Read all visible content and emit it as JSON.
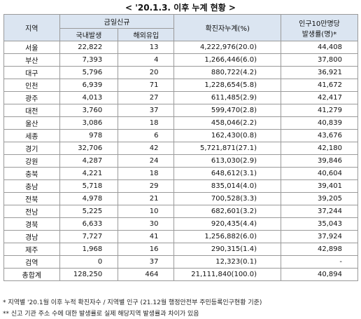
{
  "title": "< '20.1.3. 이후 누계 현황 >",
  "table": {
    "header": {
      "region": "지역",
      "new_group": "금일신규",
      "domestic": "국내발생",
      "overseas": "해외유입",
      "cumulative": "확진자누계(%)",
      "rate": [
        "인구10만명당",
        "발생률(명)*"
      ]
    },
    "rows": [
      [
        "서울",
        "22,822",
        "13",
        "4,222,976(20.0)",
        "44,408"
      ],
      [
        "부산",
        "7,393",
        "4",
        "1,266,446(6.0)",
        "37,800"
      ],
      [
        "대구",
        "5,796",
        "20",
        "880,722(4.2)",
        "36,921"
      ],
      [
        "인천",
        "6,939",
        "71",
        "1,228,654(5.8)",
        "41,672"
      ],
      [
        "광주",
        "4,013",
        "27",
        "611,485(2.9)",
        "42,417"
      ],
      [
        "대전",
        "3,760",
        "37",
        "599,470(2.8)",
        "41,279"
      ],
      [
        "울산",
        "3,086",
        "18",
        "458,046(2.2)",
        "40,839"
      ],
      [
        "세종",
        "978",
        "6",
        "162,430(0.8)",
        "43,676"
      ],
      [
        "경기",
        "32,706",
        "42",
        "5,721,871(27.1)",
        "42,180"
      ],
      [
        "강원",
        "4,287",
        "24",
        "613,030(2.9)",
        "39,846"
      ],
      [
        "충북",
        "4,221",
        "18",
        "648,612(3.1)",
        "40,604"
      ],
      [
        "충남",
        "5,718",
        "29",
        "835,014(4.0)",
        "39,401"
      ],
      [
        "전북",
        "4,978",
        "21",
        "700,528(3.3)",
        "39,205"
      ],
      [
        "전남",
        "5,225",
        "10",
        "682,601(3.2)",
        "37,244"
      ],
      [
        "경북",
        "6,633",
        "30",
        "920,435(4.4)",
        "35,043"
      ],
      [
        "경남",
        "7,727",
        "41",
        "1,256,882(6.0)",
        "37,924"
      ],
      [
        "제주",
        "1,968",
        "16",
        "290,315(1.4)",
        "42,898"
      ],
      [
        "검역",
        "0",
        "37",
        "12,323(0.1)",
        "-"
      ],
      [
        "총합계",
        "128,250",
        "464",
        "21,111,840(100.0)",
        "40,894"
      ]
    ]
  },
  "footnotes": [
    "* 지역별 '20.1월 이후 누적 확진자수 / 지역별 인구 (21.12월 행정안전부 주민등록인구현황 기준)",
    "** 신고 기관 주소 수에 대한 발생률로 실제 해당지역 발생률과 차이가 있음"
  ]
}
